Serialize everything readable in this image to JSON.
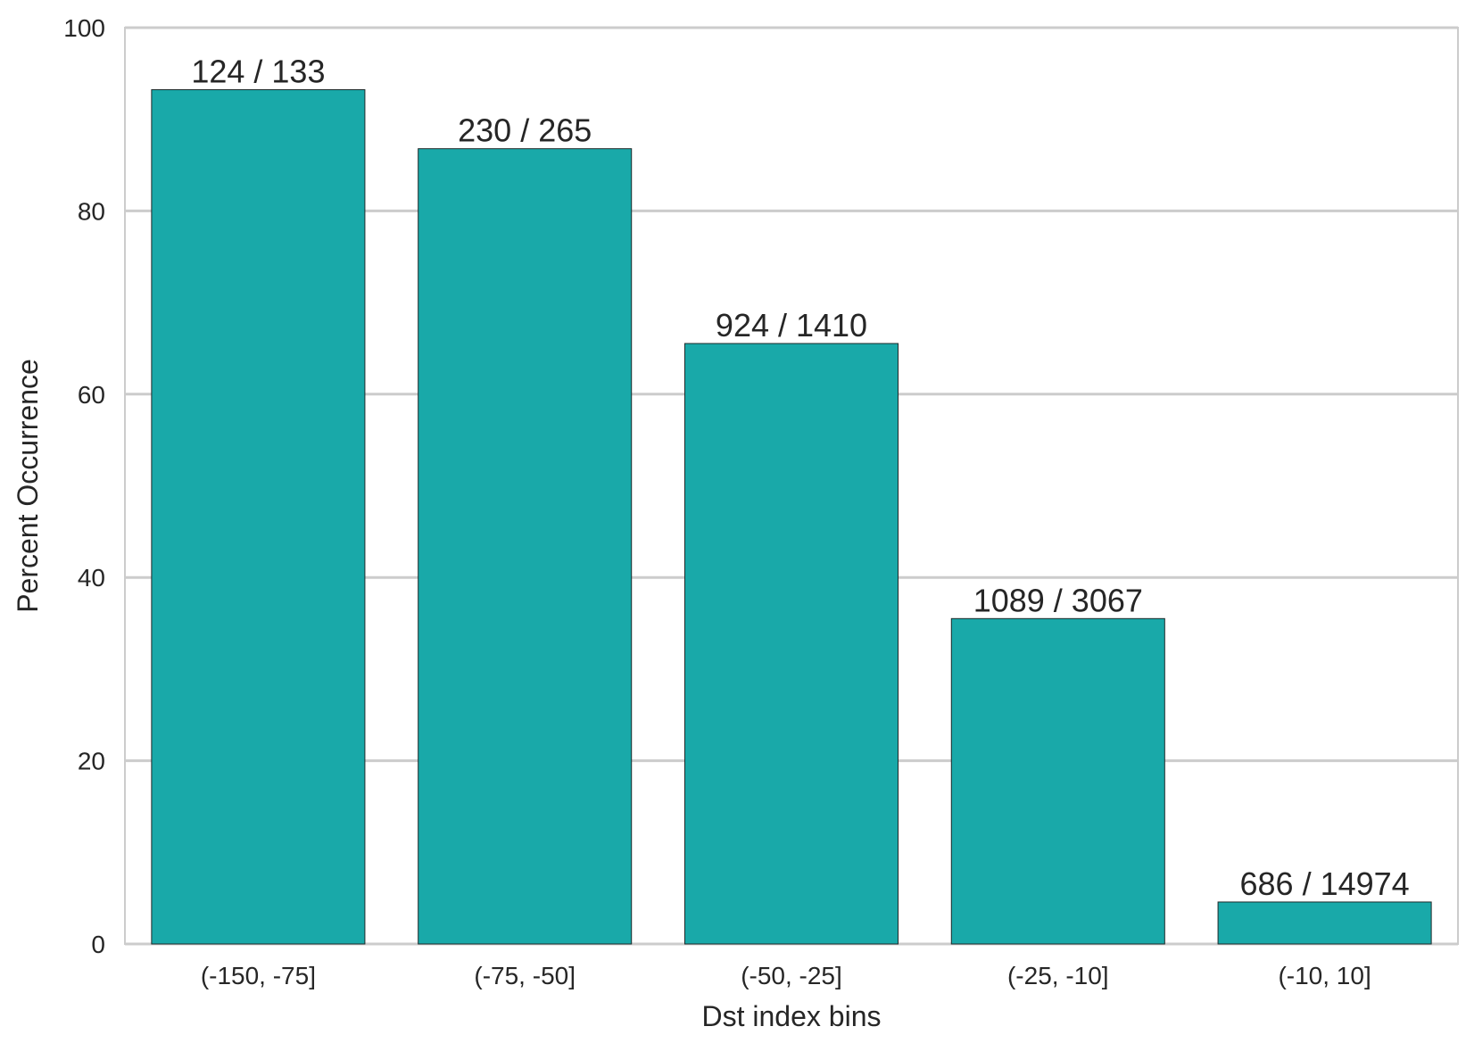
{
  "chart_data": {
    "type": "bar",
    "title": "",
    "xlabel": "Dst index bins",
    "ylabel": "Percent Occurrence",
    "categories": [
      "(-150, -75]",
      "(-75, -50]",
      "(-50, -25]",
      "(-25, -10]",
      "(-10, 10]"
    ],
    "values": [
      93.23,
      86.79,
      65.53,
      35.51,
      4.58
    ],
    "data_labels": [
      "124 / 133",
      "230 / 265",
      "924 / 1410",
      "1089 / 3067",
      "686 / 14974"
    ],
    "ylim": [
      0,
      100
    ],
    "yticks": [
      0,
      20,
      40,
      60,
      80,
      100
    ],
    "grid": true,
    "legend": "none",
    "colors": {
      "bar": "#19a9a9",
      "bar_edge": "#1e2a2a",
      "grid": "#cccccc",
      "frame": "#cccccc",
      "text": "#262626"
    }
  }
}
